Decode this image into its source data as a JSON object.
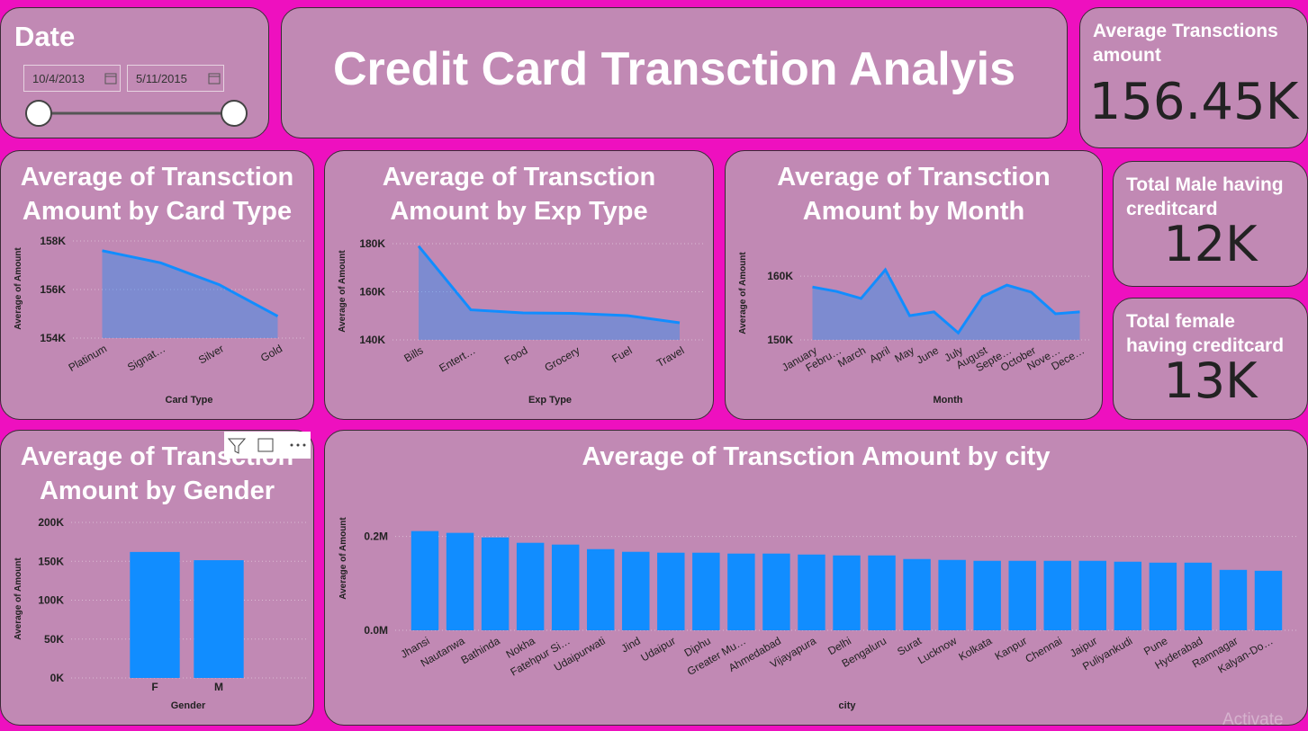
{
  "slicer": {
    "title": "Date",
    "start": "10/4/2013",
    "end": "5/11/2015"
  },
  "header": {
    "title": "Credit Card Transction Analyis"
  },
  "cards": [
    {
      "label": "Average Transctions amount",
      "value": "156.45K"
    },
    {
      "label": "Total Male having creditcard",
      "value": "12K"
    },
    {
      "label": "Total female having creditcard",
      "value": "13K"
    }
  ],
  "chart_data": [
    {
      "type": "area",
      "title": "Average of Transction Amount by Card Type",
      "x_label": "Card Type",
      "y_label": "Average of Amount",
      "categories": [
        "Platinum",
        "Signat…",
        "Silver",
        "Gold"
      ],
      "values": [
        157600,
        157100,
        156200,
        154900
      ],
      "color": "#118dff",
      "ylim": [
        154000,
        158000
      ],
      "yticks": [
        {
          "value": 154000,
          "label": "154K"
        },
        {
          "value": 156000,
          "label": "156K"
        },
        {
          "value": 158000,
          "label": "158K"
        }
      ],
      "grid": true
    },
    {
      "type": "area",
      "title": "Average of Transction Amount by Exp Type",
      "x_label": "Exp Type",
      "y_label": "Average of Amount",
      "categories": [
        "Bills",
        "Entert…",
        "Food",
        "Grocery",
        "Fuel",
        "Travel"
      ],
      "values": [
        179000,
        152500,
        151200,
        151000,
        150100,
        147100
      ],
      "color": "#118dff",
      "ylim": [
        140000,
        180000
      ],
      "yticks": [
        {
          "value": 140000,
          "label": "140K"
        },
        {
          "value": 160000,
          "label": "160K"
        },
        {
          "value": 180000,
          "label": "180K"
        }
      ],
      "grid": true
    },
    {
      "type": "area",
      "title": "Average of Transction Amount by Month",
      "x_label": "Month",
      "y_label": "Average of Amount",
      "categories": [
        "January",
        "Febru…",
        "March",
        "April",
        "May",
        "June",
        "July",
        "August",
        "Septe…",
        "October",
        "Nove…",
        "Dece…"
      ],
      "values": [
        158300,
        157600,
        156500,
        161000,
        153800,
        154400,
        151100,
        156800,
        158600,
        157500,
        154100,
        154400
      ],
      "color": "#118dff",
      "ylim": [
        150000,
        162000
      ],
      "yticks": [
        {
          "value": 150000,
          "label": "150K"
        },
        {
          "value": 160000,
          "label": "160K"
        }
      ],
      "grid": true
    },
    {
      "type": "bar",
      "title": "Average of Transction Amount by Gender",
      "x_label": "Gender",
      "y_label": "Average of Amount",
      "categories": [
        "F",
        "M"
      ],
      "values": [
        162000,
        151400
      ],
      "color": "#118dff",
      "ylim": [
        0,
        200000
      ],
      "yticks": [
        {
          "value": 0,
          "label": "0K"
        },
        {
          "value": 50000,
          "label": "50K"
        },
        {
          "value": 100000,
          "label": "100K"
        },
        {
          "value": 150000,
          "label": "150K"
        },
        {
          "value": 200000,
          "label": "200K"
        }
      ],
      "grid": true
    },
    {
      "type": "bar",
      "title": "Average of Transction Amount by city",
      "x_label": "city",
      "y_label": "Average of Amount",
      "categories": [
        "Jhansi",
        "Nautanwa",
        "Bathinda",
        "Nokha",
        "Fatehpur Si…",
        "Udaipurwati",
        "Jind",
        "Udaipur",
        "Diphu",
        "Greater Mu…",
        "Ahmedabad",
        "Vijayapura",
        "Delhi",
        "Bengaluru",
        "Surat",
        "Lucknow",
        "Kolkata",
        "Kanpur",
        "Chennai",
        "Jaipur",
        "Puliyankudi",
        "Pune",
        "Hyderabad",
        "Ramnagar",
        "Kalyan-Do…"
      ],
      "values": [
        211500,
        207700,
        198000,
        186500,
        182700,
        173000,
        167300,
        165400,
        165400,
        163500,
        163500,
        161500,
        159600,
        159600,
        151900,
        150000,
        148100,
        148100,
        148100,
        148100,
        146200,
        144200,
        144200,
        128800,
        126900
      ],
      "color": "#118dff",
      "ylim": [
        0,
        230000
      ],
      "yticks": [
        {
          "value": 0,
          "label": "0.0M"
        },
        {
          "value": 200000,
          "label": "0.2M"
        }
      ],
      "grid": true
    }
  ],
  "watermark": "Activate"
}
